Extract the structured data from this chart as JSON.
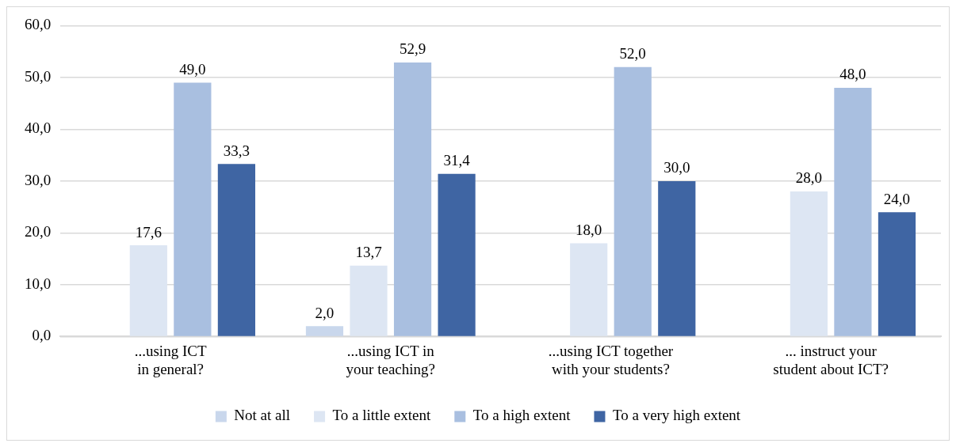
{
  "chart_data": {
    "type": "bar",
    "categories": [
      "...using ICT\nin general?",
      "...using ICT in\nyour teaching?",
      "...using ICT together\nwith your students?",
      "... instruct your\nstudent about ICT?"
    ],
    "series": [
      {
        "name": "Not at all",
        "color": "#c9d7ec",
        "values": [
          null,
          2.0,
          null,
          null
        ],
        "value_labels": [
          null,
          "2,0",
          null,
          null
        ]
      },
      {
        "name": "To a little extent",
        "color": "#dde6f3",
        "values": [
          17.6,
          13.7,
          18.0,
          28.0
        ],
        "value_labels": [
          "17,6",
          "13,7",
          "18,0",
          "28,0"
        ]
      },
      {
        "name": "To a high extent",
        "color": "#a9bfe0",
        "values": [
          49.0,
          52.9,
          52.0,
          48.0
        ],
        "value_labels": [
          "49,0",
          "52,9",
          "52,0",
          "48,0"
        ]
      },
      {
        "name": "To a very high extent",
        "color": "#3f65a3",
        "values": [
          33.3,
          31.4,
          30.0,
          24.0
        ],
        "value_labels": [
          "33,3",
          "31,4",
          "30,0",
          "24,0"
        ]
      }
    ],
    "ylim": [
      0,
      60
    ],
    "yticks": [
      {
        "value": 0,
        "label": "0,0"
      },
      {
        "value": 10,
        "label": "10,0"
      },
      {
        "value": 20,
        "label": "20,0"
      },
      {
        "value": 30,
        "label": "30,0"
      },
      {
        "value": 40,
        "label": "40,0"
      },
      {
        "value": 50,
        "label": "50,0"
      },
      {
        "value": 60,
        "label": "60,0"
      }
    ],
    "grid": "y",
    "legend": "bottom"
  }
}
